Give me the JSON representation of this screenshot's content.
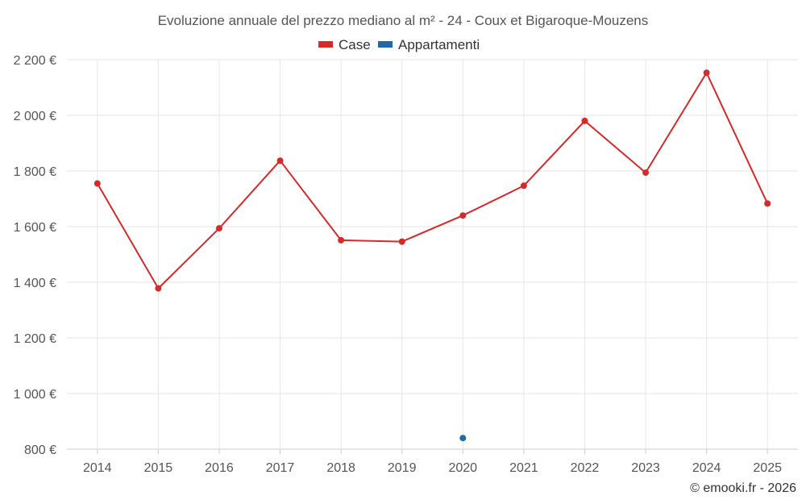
{
  "chart_data": {
    "type": "line",
    "title": "Evoluzione annuale del prezzo mediano al m² - 24 - Coux et Bigaroque-Mouzens",
    "categories": [
      "2014",
      "2015",
      "2016",
      "2017",
      "2018",
      "2019",
      "2020",
      "2021",
      "2022",
      "2023",
      "2024",
      "2025"
    ],
    "y_ticks": [
      800,
      1000,
      1200,
      1400,
      1600,
      1800,
      2000,
      2200
    ],
    "y_tick_labels": [
      "800 €",
      "1 000 €",
      "1 200 €",
      "1 400 €",
      "1 600 €",
      "1 800 €",
      "2 000 €",
      "2 200 €"
    ],
    "ylim": [
      800,
      2200
    ],
    "grid": true,
    "legend_position": "top-center",
    "series": [
      {
        "name": "Case",
        "color": "#d42a2a",
        "values": [
          1755,
          1378,
          1594,
          1837,
          1551,
          1546,
          1640,
          1747,
          1980,
          1794,
          2153,
          1683
        ]
      },
      {
        "name": "Appartamenti",
        "color": "#1f6aa5",
        "values": [
          null,
          null,
          null,
          null,
          null,
          null,
          840,
          null,
          null,
          null,
          null,
          null
        ]
      }
    ],
    "credit": "© emooki.fr - 2026"
  }
}
